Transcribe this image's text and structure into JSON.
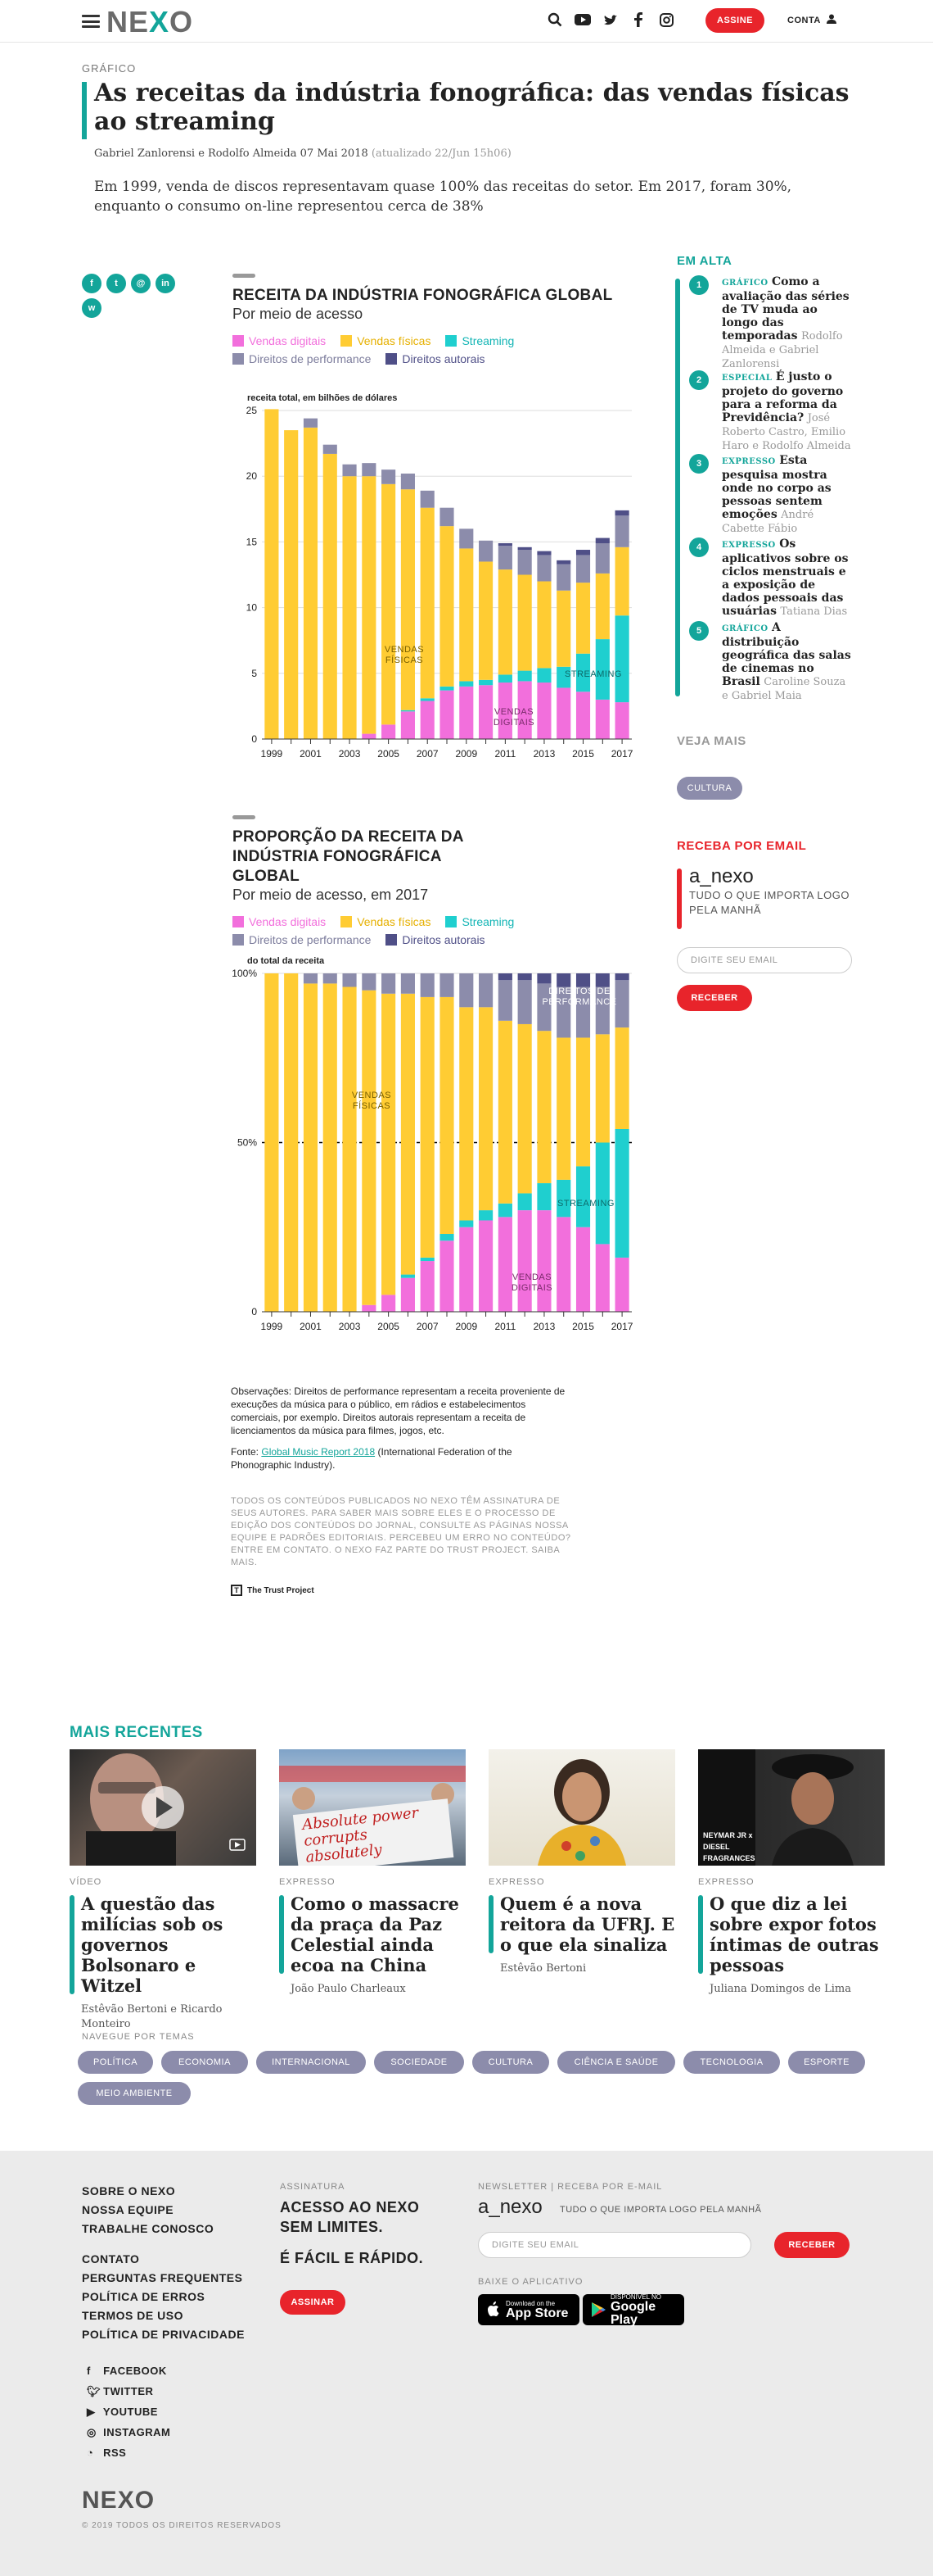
{
  "header": {
    "logo_left": "NE",
    "logo_x": "X",
    "logo_right": "O",
    "subscribe": "ASSINE",
    "account": "CONTA",
    "icons": [
      "search-icon",
      "youtube-icon",
      "twitter-icon",
      "facebook-icon",
      "instagram-icon",
      "user-icon"
    ]
  },
  "article": {
    "kicker": "GRÁFICO",
    "title": "As receitas da indústria fonográfica: das vendas físicas ao streaming",
    "byline": "Gabriel Zanlorensi e Rodolfo Almeida 07 Mai 2018",
    "updated": "(atualizado 22/Jun 15h06)",
    "lede": "Em 1999, venda de discos representavam quase 100% das receitas do setor. Em 2017, foram 30%, enquanto o consumo on-line representou cerca de 38%",
    "share": [
      "f",
      "t",
      "@",
      "in",
      "w"
    ]
  },
  "legend": {
    "digital": "Vendas digitais",
    "physical": "Vendas físicas",
    "streaming": "Streaming",
    "performance": "Direitos de performance",
    "sync": "Direitos autorais"
  },
  "colors": {
    "digital": "#f26fdc",
    "physical": "#ffcc33",
    "streaming": "#1fcfcf",
    "performance": "#8c8cab",
    "sync": "#4f4f87",
    "accent": "#13a59a",
    "red": "#e8242b"
  },
  "chart_data": [
    {
      "type": "bar",
      "title": "RECEITA DA INDÚSTRIA FONOGRÁFICA GLOBAL",
      "subtitle": "Por meio de acesso",
      "ylabel": "receita total, em bilhões de dólares",
      "ylim": [
        0,
        25
      ],
      "yticks": [
        0,
        5,
        10,
        15,
        20,
        25
      ],
      "xticks": [
        "1999",
        "2001",
        "2003",
        "2005",
        "2007",
        "2009",
        "2011",
        "2013",
        "2015",
        "2017"
      ],
      "annotations": [
        "VENDAS FÍSICAS",
        "VENDAS DIGITAIS",
        "STREAMING"
      ],
      "categories": [
        "1999",
        "2000",
        "2001",
        "2002",
        "2003",
        "2004",
        "2005",
        "2006",
        "2007",
        "2008",
        "2009",
        "2010",
        "2011",
        "2012",
        "2013",
        "2014",
        "2015",
        "2016",
        "2017"
      ],
      "series": [
        {
          "name": "Vendas digitais",
          "values": [
            0,
            0,
            0,
            0,
            0,
            0.4,
            1.1,
            2.1,
            2.9,
            3.7,
            4.0,
            4.1,
            4.3,
            4.4,
            4.3,
            3.9,
            3.6,
            3.0,
            2.8
          ]
        },
        {
          "name": "Streaming",
          "values": [
            0,
            0,
            0,
            0,
            0,
            0,
            0,
            0.1,
            0.2,
            0.3,
            0.4,
            0.4,
            0.6,
            0.8,
            1.1,
            1.6,
            2.9,
            4.6,
            6.6
          ]
        },
        {
          "name": "Vendas físicas",
          "values": [
            25.1,
            23.5,
            23.7,
            21.7,
            20.0,
            19.6,
            18.3,
            16.8,
            14.5,
            12.2,
            10.1,
            9.0,
            8.0,
            7.3,
            6.6,
            5.8,
            5.4,
            5.0,
            5.2
          ]
        },
        {
          "name": "Direitos de performance",
          "values": [
            0,
            0,
            0.7,
            0.7,
            0.9,
            1.0,
            1.1,
            1.2,
            1.3,
            1.4,
            1.5,
            1.6,
            1.8,
            1.9,
            2.0,
            2.0,
            2.1,
            2.3,
            2.4
          ]
        },
        {
          "name": "Direitos autorais",
          "values": [
            0,
            0,
            0,
            0,
            0,
            0,
            0,
            0,
            0,
            0,
            0,
            0,
            0.2,
            0.2,
            0.3,
            0.3,
            0.4,
            0.4,
            0.4
          ]
        }
      ]
    },
    {
      "type": "bar",
      "title": "PROPORÇÃO DA RECEITA DA INDÚSTRIA FONOGRÁFICA GLOBAL",
      "subtitle": "Por meio de acesso, em 2017",
      "ylabel": "do total da receita",
      "ylim": [
        0,
        100
      ],
      "yticks": [
        "0",
        "50%",
        "100%"
      ],
      "xticks": [
        "1999",
        "2001",
        "2003",
        "2005",
        "2007",
        "2009",
        "2011",
        "2013",
        "2015",
        "2017"
      ],
      "annotations": [
        "VENDAS FÍSICAS",
        "VENDAS DIGITAIS",
        "STREAMING",
        "DIREITOS DE PERFORMANCE"
      ],
      "categories": [
        "1999",
        "2000",
        "2001",
        "2002",
        "2003",
        "2004",
        "2005",
        "2006",
        "2007",
        "2008",
        "2009",
        "2010",
        "2011",
        "2012",
        "2013",
        "2014",
        "2015",
        "2016",
        "2017"
      ],
      "series": [
        {
          "name": "Vendas digitais",
          "values": [
            0,
            0,
            0,
            0,
            0,
            2,
            5,
            10,
            15,
            21,
            25,
            27,
            28,
            30,
            30,
            28,
            25,
            20,
            16
          ]
        },
        {
          "name": "Streaming",
          "values": [
            0,
            0,
            0,
            0,
            0,
            0,
            0,
            1,
            1,
            2,
            2,
            3,
            4,
            5,
            8,
            11,
            18,
            30,
            38
          ]
        },
        {
          "name": "Vendas físicas",
          "values": [
            100,
            100,
            97,
            97,
            96,
            93,
            89,
            83,
            77,
            70,
            63,
            60,
            54,
            50,
            45,
            42,
            38,
            32,
            30
          ]
        },
        {
          "name": "Direitos de performance",
          "values": [
            0,
            0,
            3,
            3,
            4,
            5,
            6,
            6,
            7,
            7,
            10,
            10,
            12,
            13,
            14,
            15,
            15,
            14,
            14
          ]
        },
        {
          "name": "Direitos autorais",
          "values": [
            0,
            0,
            0,
            0,
            0,
            0,
            0,
            0,
            0,
            0,
            0,
            0,
            2,
            2,
            3,
            4,
            4,
            4,
            2
          ]
        }
      ]
    }
  ],
  "notes": {
    "observations": "Observações: Direitos de performance representam a receita proveniente de execuções da música para o público, em rádios e estabelecimentos comerciais, por exemplo. Direitos autorais representam a receita de licenciamentos da música para filmes, jogos, etc.",
    "source_prefix": "Fonte:",
    "source_link": "Global Music Report 2018",
    "source_suffix": "(International Federation of the Phonographic Industry).",
    "legal": "TODOS OS CONTEÚDOS PUBLICADOS NO NEXO TÊM ASSINATURA DE SEUS AUTORES. PARA SABER MAIS SOBRE ELES E O PROCESSO DE EDIÇÃO DOS CONTEÚDOS DO JORNAL, CONSULTE AS PÁGINAS NOSSA EQUIPE E PADRÕES EDITORIAIS. PERCEBEU UM ERRO NO CONTEÚDO? ENTRE EM CONTATO. O NEXO FAZ PARTE DO TRUST PROJECT. SAIBA MAIS.",
    "trust": "The Trust Project"
  },
  "sidebar": {
    "trending_title": "EM ALTA",
    "trending": [
      {
        "num": "1",
        "kicker": "GRÁFICO",
        "title": "Como a avaliação das séries de TV muda ao longo das temporadas",
        "author": "Rodolfo Almeida e Gabriel Zanlorensi"
      },
      {
        "num": "2",
        "kicker": "ESPECIAL",
        "title": "É justo o projeto do governo para a reforma da Previdência?",
        "author": "José Roberto Castro, Emilio Haro e Rodolfo Almeida"
      },
      {
        "num": "3",
        "kicker": "EXPRESSO",
        "title": "Esta pesquisa mostra onde no corpo as pessoas sentem emoções",
        "author": "André Cabette Fábio"
      },
      {
        "num": "4",
        "kicker": "EXPRESSO",
        "title": "Os aplicativos sobre os ciclos menstruais e a exposição de dados pessoais das usuárias",
        "author": "Tatiana Dias"
      },
      {
        "num": "5",
        "kicker": "GRÁFICO",
        "title": "A distribuição geográfica das salas de cinemas no Brasil",
        "author": "Caroline Souza e Gabriel Maia"
      }
    ],
    "see_more_title": "VEJA MAIS",
    "see_more_tag": "CULTURA",
    "newsletter_title": "RECEBA POR EMAIL",
    "newsletter_name": "a_nexo",
    "newsletter_desc": "TUDO O QUE IMPORTA LOGO PELA MANHÃ",
    "email_placeholder": "DIGITE SEU EMAIL",
    "receive": "RECEBER"
  },
  "recent": {
    "title": "MAIS RECENTES",
    "cards": [
      {
        "kicker": "VÍDEO",
        "title": "A questão das milícias sob os governos Bolsonaro e Witzel",
        "author": "Estêvão Bertoni e Ricardo Monteiro"
      },
      {
        "kicker": "EXPRESSO",
        "title": "Como o massacre da praça da Paz Celestial ainda ecoa na China",
        "author": "João Paulo Charleaux",
        "img_text": "Absolute power corrupts absolutely"
      },
      {
        "kicker": "EXPRESSO",
        "title": "Quem é a nova reitora da UFRJ. E o que ela sinaliza",
        "author": "Estêvão Bertoni"
      },
      {
        "kicker": "EXPRESSO",
        "title": "O que diz a lei sobre expor fotos íntimas de outras pessoas",
        "author": "Juliana Domingos de Lima",
        "img_text": "NEYMAR JR x DIESEL FRAGRANCES"
      }
    ],
    "topics_title": "NAVEGUE POR TEMAS",
    "topics": [
      "POLÍTICA",
      "ECONOMIA",
      "INTERNACIONAL",
      "SOCIEDADE",
      "CULTURA",
      "CIÊNCIA E SAÚDE",
      "TECNOLOGIA",
      "ESPORTE",
      "MEIO AMBIENTE"
    ]
  },
  "footer": {
    "links1": [
      "SOBRE O NEXO",
      "NOSSA EQUIPE",
      "TRABALHE CONOSCO"
    ],
    "links2": [
      "CONTATO",
      "PERGUNTAS FREQUENTES",
      "POLÍTICA DE ERROS",
      "TERMOS DE USO",
      "POLÍTICA DE PRIVACIDADE"
    ],
    "social": [
      "FACEBOOK",
      "TWITTER",
      "YOUTUBE",
      "INSTAGRAM",
      "RSS"
    ],
    "sub_label": "ASSINATURA",
    "sub_line1": "ACESSO AO NEXO",
    "sub_line2": "SEM LIMITES.",
    "sub_line3": "É FÁCIL E RÁPIDO.",
    "sub_btn": "ASSINAR",
    "news_label": "NEWSLETTER | RECEBA POR E-MAIL",
    "news_name": "a_nexo",
    "news_desc": "TUDO O QUE IMPORTA LOGO PELA MANHÃ",
    "email_placeholder": "DIGITE SEU EMAIL",
    "receive": "RECEBER",
    "app_label": "BAIXE O APLICATIVO",
    "appstore_small": "Download on the",
    "appstore_big": "App Store",
    "gplay_small": "DISPONÍVEL NO",
    "gplay_big": "Google Play",
    "copyright": "© 2019 TODOS OS DIREITOS RESERVADOS"
  }
}
